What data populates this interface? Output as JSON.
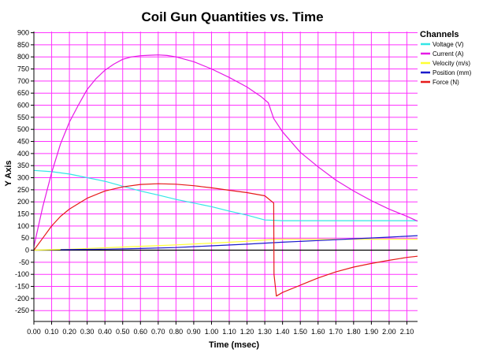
{
  "chart_data": {
    "type": "line",
    "title": "Coil Gun Quantities vs. Time",
    "xlabel": "Time (msec)",
    "ylabel": "Y Axis",
    "xlim": [
      0,
      2.16
    ],
    "ylim": [
      -295,
      905
    ],
    "x_ticks": [
      "0.00",
      "0.10",
      "0.20",
      "0.30",
      "0.40",
      "0.50",
      "0.60",
      "0.70",
      "0.80",
      "0.90",
      "1.00",
      "1.10",
      "1.20",
      "1.30",
      "1.40",
      "1.50",
      "1.60",
      "1.70",
      "1.80",
      "1.90",
      "2.00",
      "2.10"
    ],
    "y_ticks": [
      "900",
      "850",
      "800",
      "750",
      "700",
      "650",
      "600",
      "550",
      "500",
      "450",
      "400",
      "350",
      "300",
      "250",
      "200",
      "150",
      "100",
      "50",
      "0",
      "-50",
      "-100",
      "-150",
      "-200",
      "-250"
    ],
    "grid": true,
    "grid_color": "#ff33ff",
    "legend_title": "Channels",
    "legend_position": "right",
    "series": [
      {
        "name": "Voltage (V)",
        "color": "#33e6e6",
        "x": [
          0,
          0.1,
          0.2,
          0.3,
          0.4,
          0.5,
          0.6,
          0.7,
          0.8,
          0.9,
          1.0,
          1.1,
          1.2,
          1.3,
          1.4,
          1.6,
          1.8,
          2.0,
          2.16
        ],
        "y": [
          330,
          325,
          315,
          300,
          285,
          265,
          245,
          228,
          210,
          195,
          180,
          162,
          145,
          125,
          122,
          122,
          122,
          122,
          122
        ]
      },
      {
        "name": "Current (A)",
        "color": "#e619e6",
        "x": [
          0,
          0.05,
          0.1,
          0.15,
          0.2,
          0.25,
          0.3,
          0.35,
          0.4,
          0.45,
          0.5,
          0.55,
          0.6,
          0.65,
          0.7,
          0.75,
          0.8,
          0.9,
          1.0,
          1.1,
          1.2,
          1.28,
          1.32,
          1.35,
          1.4,
          1.5,
          1.6,
          1.7,
          1.8,
          1.9,
          2.0,
          2.1,
          2.16
        ],
        "y": [
          15,
          180,
          320,
          440,
          530,
          600,
          665,
          710,
          745,
          770,
          790,
          800,
          805,
          807,
          808,
          806,
          800,
          780,
          750,
          715,
          675,
          635,
          610,
          545,
          490,
          405,
          345,
          290,
          245,
          205,
          170,
          140,
          120
        ]
      },
      {
        "name": "Velocity (m/s)",
        "color": "#ffff33",
        "x": [
          0,
          0.2,
          0.4,
          0.6,
          0.8,
          1.0,
          1.2,
          1.36,
          1.6,
          1.8,
          2.0,
          2.16
        ],
        "y": [
          0,
          4,
          10,
          16,
          22,
          29,
          37,
          45,
          45,
          45,
          45,
          45
        ]
      },
      {
        "name": "Position (mm)",
        "color": "#1a1acc",
        "x": [
          0.15,
          0.4,
          0.6,
          0.8,
          1.0,
          1.2,
          1.4,
          1.6,
          1.8,
          2.0,
          2.16
        ],
        "y": [
          2,
          4,
          7,
          11,
          18,
          25,
          33,
          40,
          47,
          54,
          60
        ]
      },
      {
        "name": "Force (N)",
        "color": "#e61919",
        "x": [
          0,
          0.05,
          0.1,
          0.15,
          0.2,
          0.3,
          0.4,
          0.5,
          0.6,
          0.7,
          0.8,
          0.9,
          1.0,
          1.1,
          1.2,
          1.3,
          1.35,
          1.352,
          1.365,
          1.4,
          1.5,
          1.6,
          1.7,
          1.8,
          1.9,
          2.0,
          2.1,
          2.16
        ],
        "y": [
          0,
          50,
          100,
          140,
          170,
          215,
          245,
          262,
          272,
          275,
          273,
          267,
          258,
          248,
          238,
          225,
          195,
          -100,
          -190,
          -175,
          -145,
          -115,
          -90,
          -70,
          -55,
          -42,
          -30,
          -25
        ]
      }
    ]
  }
}
